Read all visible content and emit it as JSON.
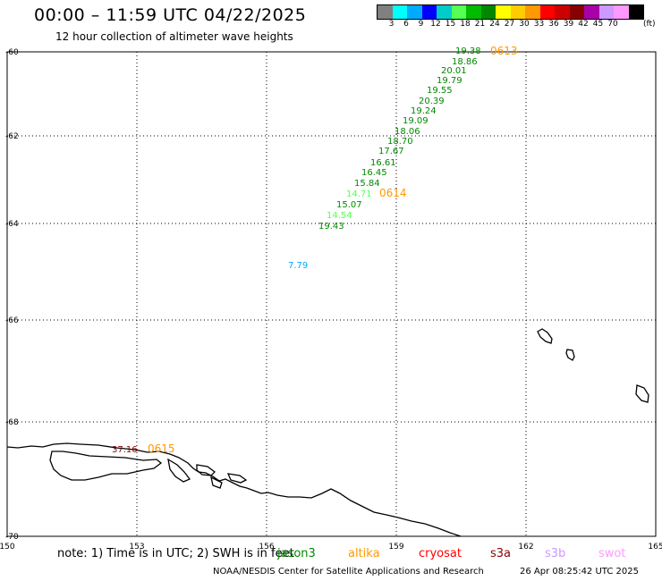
{
  "header": {
    "title": "00:00 – 11:59 UTC 04/22/2025",
    "subtitle": "12 hour collection of altimeter wave heights"
  },
  "legend": {
    "colors": [
      "#808080",
      "#00ffff",
      "#00aaff",
      "#0000ff",
      "#00cccc",
      "#55ff55",
      "#00bb00",
      "#008800",
      "#ffff00",
      "#ffcc00",
      "#ff9900",
      "#ff0000",
      "#cc0000",
      "#880000",
      "#aa00aa",
      "#cc99ff",
      "#ff99ff",
      "#000000"
    ],
    "labels": [
      "3",
      "6",
      "9",
      "12",
      "15",
      "18",
      "21",
      "24",
      "27",
      "30",
      "33",
      "36",
      "39",
      "42",
      "45",
      "70"
    ],
    "unit": "(ft)"
  },
  "axes": {
    "lon_ticks": [
      "150",
      "153",
      "156",
      "159",
      "162",
      "165"
    ],
    "lat_ticks": [
      "-60",
      "-62",
      "-64",
      "-66",
      "-68",
      "-70"
    ]
  },
  "track_labels": [
    {
      "text": "0613",
      "color": "#ff9900"
    },
    {
      "text": "0614",
      "color": "#ff9900"
    },
    {
      "text": "0615",
      "color": "#ff9900"
    }
  ],
  "wave_heights": [
    {
      "value": "19.38",
      "color": "#008800"
    },
    {
      "value": "18.86",
      "color": "#008800"
    },
    {
      "value": "20.01",
      "color": "#008800"
    },
    {
      "value": "19.79",
      "color": "#008800"
    },
    {
      "value": "19.55",
      "color": "#008800"
    },
    {
      "value": "20.39",
      "color": "#008800"
    },
    {
      "value": "19.24",
      "color": "#008800"
    },
    {
      "value": "19.09",
      "color": "#008800"
    },
    {
      "value": "18.06",
      "color": "#008800"
    },
    {
      "value": "18.70",
      "color": "#008800"
    },
    {
      "value": "17.67",
      "color": "#008800"
    },
    {
      "value": "16.61",
      "color": "#008800"
    },
    {
      "value": "16.45",
      "color": "#008800"
    },
    {
      "value": "15.84",
      "color": "#008800"
    },
    {
      "value": "14.71",
      "color": "#55ff55"
    },
    {
      "value": "15.07",
      "color": "#008800"
    },
    {
      "value": "14.54",
      "color": "#55ff55"
    },
    {
      "value": "19.43",
      "color": "#008800"
    },
    {
      "value": "7.79",
      "color": "#00aaff"
    },
    {
      "value": "37.16",
      "color": "#880000"
    }
  ],
  "footer": {
    "note": "note: 1) Time is in UTC; 2) SWH is in feet",
    "satellites": [
      {
        "name": "jason3",
        "color": "#008800"
      },
      {
        "name": "altika",
        "color": "#ff9900"
      },
      {
        "name": "cryosat",
        "color": "#ff0000"
      },
      {
        "name": "s3a",
        "color": "#880000"
      },
      {
        "name": "s3b",
        "color": "#cc99ff"
      },
      {
        "name": "swot",
        "color": "#ff99ff"
      }
    ],
    "credit": "NOAA/NESDIS Center for Satellite Applications and Research",
    "timestamp": "26 Apr 08:25:42 UTC 2025"
  }
}
